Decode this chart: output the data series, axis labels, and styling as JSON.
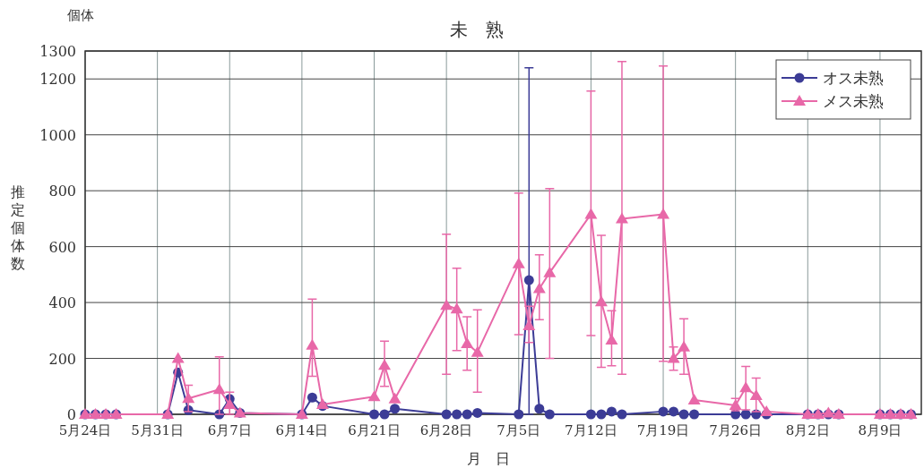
{
  "chart_data": {
    "type": "line",
    "title": "未　熟",
    "xlabel": "月　日",
    "ylabel": "推定個体数",
    "annotations": [
      "個体"
    ],
    "xlim": [
      "--05-24",
      "--08-13"
    ],
    "xticks": [
      {
        "value": "--05-24",
        "label": "5月24日"
      },
      {
        "value": "--05-31",
        "label": "5月31日"
      },
      {
        "value": "--06-07",
        "label": "6月7日"
      },
      {
        "value": "--06-14",
        "label": "6月14日"
      },
      {
        "value": "--06-21",
        "label": "6月21日"
      },
      {
        "value": "--06-28",
        "label": "6月28日"
      },
      {
        "value": "--07-05",
        "label": "7月5日"
      },
      {
        "value": "--07-12",
        "label": "7月12日"
      },
      {
        "value": "--07-19",
        "label": "7月19日"
      },
      {
        "value": "--07-26",
        "label": "7月26日"
      },
      {
        "value": "--08-02",
        "label": "8月2日"
      },
      {
        "value": "--08-09",
        "label": "8月9日"
      }
    ],
    "ylim": [
      0,
      1300
    ],
    "yticks": [
      0,
      200,
      400,
      600,
      800,
      1000,
      1200,
      1300
    ],
    "grid": true,
    "legend": "top right",
    "line_style": "solid",
    "series": [
      {
        "name": "オス未熟",
        "color": "#3c3c96",
        "marker": "circle",
        "x": [
          "--05-24",
          "--05-25",
          "--05-26",
          "--05-27",
          "--06-01",
          "--06-02",
          "--06-03",
          "--06-06",
          "--06-07",
          "--06-08",
          "--06-14",
          "--06-15",
          "--06-16",
          "--06-21",
          "--06-22",
          "--06-23",
          "--06-28",
          "--06-29",
          "--06-30",
          "--07-01",
          "--07-05",
          "--07-06",
          "--07-07",
          "--07-08",
          "--07-12",
          "--07-13",
          "--07-14",
          "--07-15",
          "--07-19",
          "--07-20",
          "--07-21",
          "--07-22",
          "--07-26",
          "--07-27",
          "--07-28",
          "--07-29",
          "--08-02",
          "--08-03",
          "--08-04",
          "--08-05",
          "--08-09",
          "--08-10",
          "--08-11",
          "--08-12"
        ],
        "values": [
          0,
          0,
          0,
          0,
          0,
          150,
          15,
          0,
          55,
          5,
          0,
          60,
          30,
          0,
          0,
          20,
          0,
          0,
          0,
          5,
          0,
          480,
          20,
          0,
          0,
          0,
          10,
          0,
          10,
          10,
          0,
          0,
          0,
          0,
          0,
          0,
          0,
          0,
          0,
          0,
          0,
          0,
          0,
          0
        ],
        "errors": [
          null,
          null,
          null,
          null,
          null,
          null,
          null,
          null,
          null,
          null,
          null,
          null,
          null,
          null,
          null,
          null,
          null,
          null,
          null,
          null,
          null,
          [
            0,
            1240
          ],
          null,
          null,
          null,
          null,
          null,
          null,
          null,
          null,
          null,
          null,
          null,
          null,
          null,
          null,
          null,
          null,
          null,
          null,
          null,
          null,
          null,
          null
        ]
      },
      {
        "name": "メス未熟",
        "color": "#e868a8",
        "marker": "triangle",
        "x": [
          "--05-24",
          "--05-25",
          "--05-26",
          "--05-27",
          "--06-01",
          "--06-02",
          "--06-03",
          "--06-06",
          "--06-07",
          "--06-08",
          "--06-14",
          "--06-15",
          "--06-16",
          "--06-21",
          "--06-22",
          "--06-23",
          "--06-28",
          "--06-29",
          "--06-30",
          "--07-01",
          "--07-05",
          "--07-06",
          "--07-07",
          "--07-08",
          "--07-12",
          "--07-13",
          "--07-14",
          "--07-15",
          "--07-19",
          "--07-20",
          "--07-21",
          "--07-22",
          "--07-26",
          "--07-27",
          "--07-28",
          "--07-29",
          "--08-02",
          "--08-03",
          "--08-04",
          "--08-05",
          "--08-09",
          "--08-10",
          "--08-11",
          "--08-12"
        ],
        "values": [
          0,
          0,
          0,
          0,
          0,
          200,
          57,
          89,
          35,
          5,
          0,
          247,
          35,
          63,
          175,
          55,
          390,
          377,
          253,
          222,
          539,
          317,
          450,
          507,
          716,
          403,
          266,
          700,
          716,
          200,
          241,
          51,
          32,
          95,
          67,
          10,
          0,
          0,
          5,
          0,
          0,
          0,
          0,
          0
        ],
        "errors": [
          null,
          null,
          null,
          null,
          null,
          null,
          [
            10,
            104
          ],
          [
            0,
            206
          ],
          [
            0,
            79
          ],
          null,
          null,
          [
            136,
            412
          ],
          null,
          null,
          [
            100,
            262
          ],
          null,
          [
            143,
            644
          ],
          [
            228,
            523
          ],
          [
            158,
            349
          ],
          [
            79,
            374
          ],
          [
            285,
            792
          ],
          [
            257,
            387
          ],
          [
            339,
            571
          ],
          [
            200,
            808
          ],
          [
            282,
            1157
          ],
          [
            168,
            640
          ],
          [
            174,
            371
          ],
          [
            143,
            1262
          ],
          [
            190,
            1246
          ],
          [
            158,
            241
          ],
          [
            143,
            342
          ],
          null,
          [
            13,
            57
          ],
          [
            16,
            171
          ],
          [
            10,
            130
          ],
          null,
          null,
          null,
          null,
          null,
          null,
          null,
          null,
          null
        ]
      }
    ]
  }
}
